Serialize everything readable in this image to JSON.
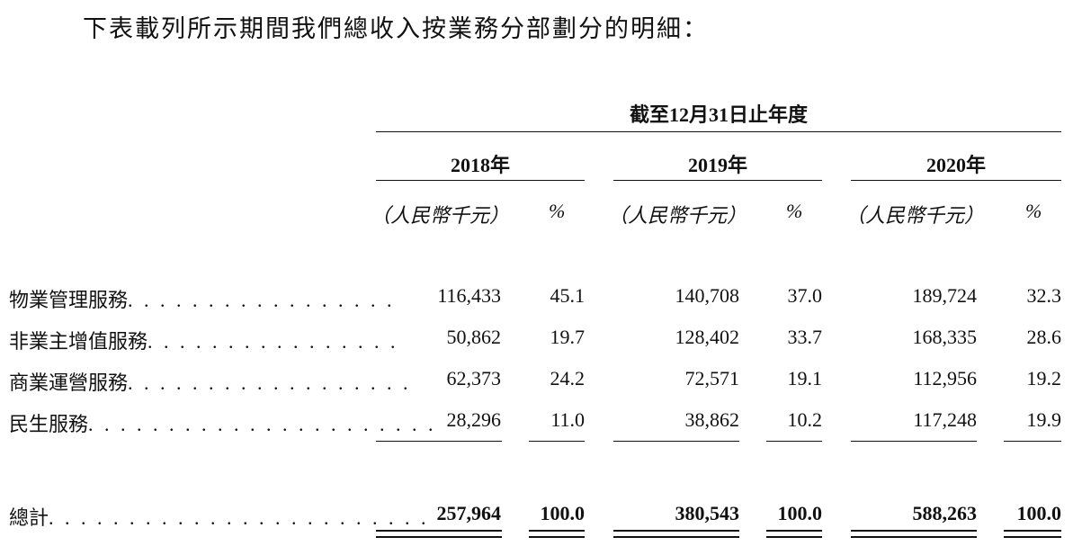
{
  "intro": "下表載列所示期間我們總收入按業務分部劃分的明細：",
  "period_header": "截至12月31日止年度",
  "years": [
    "2018年",
    "2019年",
    "2020年"
  ],
  "unit_label": "（人民幣千元）",
  "percent_label": "%",
  "rows": [
    {
      "label": "物業管理服務",
      "leader": ". . . . . . . . . . . . . . . . .",
      "values": [
        "116,433",
        "45.1",
        "140,708",
        "37.0",
        "189,724",
        "32.3"
      ]
    },
    {
      "label": "非業主增值服務",
      "leader": ". . . . . . . . . . . . . . . .",
      "values": [
        "50,862",
        "19.7",
        "128,402",
        "33.7",
        "168,335",
        "28.6"
      ]
    },
    {
      "label": "商業運營服務",
      "leader": ". . . . . . . . . . . . . . . . . .",
      "values": [
        "62,373",
        "24.2",
        "72,571",
        "19.1",
        "112,956",
        "19.2"
      ]
    },
    {
      "label": "民生服務",
      "leader": ". . . . . . . . . . . . . . . . . . . . . .",
      "values": [
        "28,296",
        "11.0",
        "38,862",
        "10.2",
        "117,248",
        "19.9"
      ]
    }
  ],
  "total": {
    "label": "總計",
    "leader": ". . . . . . . . . . . . . . . . . . . . . . . .",
    "values": [
      "257,964",
      "100.0",
      "380,543",
      "100.0",
      "588,263",
      "100.0"
    ]
  }
}
